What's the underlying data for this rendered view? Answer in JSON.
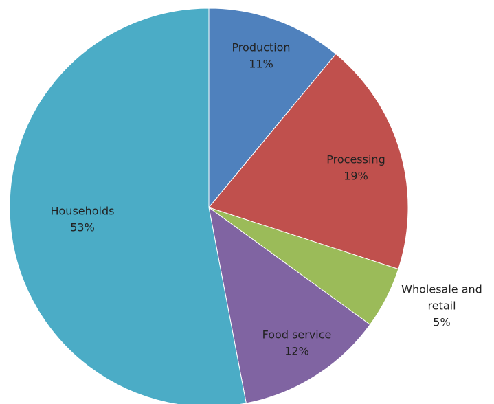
{
  "chart_data": {
    "type": "pie",
    "title": "",
    "slices": [
      {
        "name": "Production",
        "value": 11,
        "value_label": "11%",
        "label_lines": [
          "Production"
        ],
        "color": "#4f81bd"
      },
      {
        "name": "Processing",
        "value": 19,
        "value_label": "19%",
        "label_lines": [
          "Processing"
        ],
        "color": "#c0504d"
      },
      {
        "name": "Wholesale and retail",
        "value": 5,
        "value_label": "5%",
        "label_lines": [
          "Wholesale and",
          "retail"
        ],
        "color": "#9bbb59"
      },
      {
        "name": "Food service",
        "value": 12,
        "value_label": "12%",
        "label_lines": [
          "Food service"
        ],
        "color": "#8064a2"
      },
      {
        "name": "Households",
        "value": 53,
        "value_label": "53%",
        "label_lines": [
          "Households"
        ],
        "color": "#4bacc6"
      }
    ],
    "start": "12 o'clock",
    "direction": "clockwise",
    "legend": "none"
  }
}
